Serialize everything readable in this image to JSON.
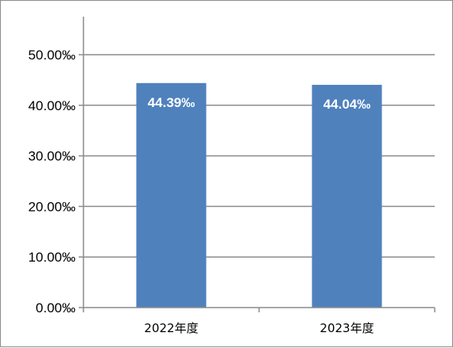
{
  "chart_data": {
    "type": "bar",
    "categories": [
      "2022年度",
      "2023年度"
    ],
    "series": [
      {
        "values": [
          44.39,
          44.04
        ],
        "color": "#4f81bd"
      }
    ],
    "data_labels": [
      "44.39‰",
      "44.04‰"
    ],
    "ylim": [
      0,
      50
    ],
    "yticks": [
      0,
      10,
      20,
      30,
      40,
      50
    ],
    "ytick_labels": [
      "0.00‰",
      "10.00‰",
      "20.00‰",
      "30.00‰",
      "40.00‰",
      "50.00‰"
    ],
    "title": "",
    "xlabel": "",
    "ylabel": "",
    "grid": true,
    "gridline_color": "#8c8c8c",
    "axis_color": "#8c8c8c",
    "legend": "none"
  }
}
